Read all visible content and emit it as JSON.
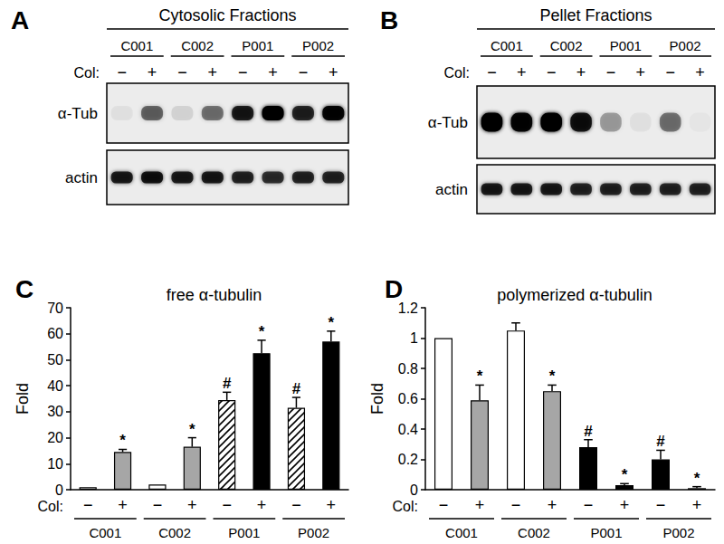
{
  "blots": [
    {
      "panel": "A",
      "title": "Cytosolic Fractions",
      "groups": [
        "C001",
        "C002",
        "P001",
        "P002"
      ],
      "lane_label": "Col:",
      "lanes": [
        "−",
        "+",
        "−",
        "+",
        "−",
        "+",
        "−",
        "+"
      ],
      "rows": [
        {
          "label": "α-Tub",
          "band_intensity": [
            0.05,
            0.5,
            0.1,
            0.45,
            0.8,
            1.0,
            0.75,
            0.95
          ]
        },
        {
          "label": "actin",
          "band_intensity": [
            0.8,
            0.85,
            0.8,
            0.8,
            0.75,
            0.7,
            0.75,
            0.75
          ]
        }
      ]
    },
    {
      "panel": "B",
      "title": "Pellet Fractions",
      "groups": [
        "C001",
        "C002",
        "P001",
        "P002"
      ],
      "lane_label": "Col:",
      "lanes": [
        "−",
        "+",
        "−",
        "+",
        "−",
        "+",
        "−",
        "+"
      ],
      "rows": [
        {
          "label": "α-Tub",
          "band_intensity": [
            1.0,
            0.95,
            1.0,
            0.85,
            0.3,
            0.05,
            0.45,
            0.03
          ]
        },
        {
          "label": "actin",
          "band_intensity": [
            0.8,
            0.8,
            0.8,
            0.75,
            0.75,
            0.75,
            0.75,
            0.75
          ]
        }
      ]
    }
  ],
  "chart_data": [
    {
      "type": "bar",
      "panel": "C",
      "title": "free α-tubulin",
      "ylabel": "Fold",
      "x_label": "Col:",
      "categories": [
        "−",
        "+",
        "−",
        "+",
        "−",
        "+",
        "−",
        "+"
      ],
      "groups": [
        "C001",
        "C002",
        "P001",
        "P002"
      ],
      "values": [
        1,
        14.5,
        2,
        16.5,
        34.5,
        52.5,
        31.5,
        57
      ],
      "errors": [
        0,
        1,
        0,
        3.5,
        3,
        5,
        4,
        4
      ],
      "annotations": [
        null,
        "*",
        null,
        "*",
        "#",
        "*",
        "#",
        "*"
      ],
      "colors": [
        "#ffffff",
        "#a6a6a6",
        "#ffffff",
        "#a6a6a6",
        "hatched",
        "#000000",
        "hatched",
        "#000000"
      ],
      "ylim": [
        0,
        70
      ],
      "yticks": [
        0,
        10,
        20,
        30,
        40,
        50,
        60,
        70
      ],
      "grid": false
    },
    {
      "type": "bar",
      "panel": "D",
      "title": "polymerized α-tubulin",
      "ylabel": "Fold",
      "x_label": "Col:",
      "categories": [
        "−",
        "+",
        "−",
        "+",
        "−",
        "+",
        "−",
        "+"
      ],
      "groups": [
        "C001",
        "C002",
        "P001",
        "P002"
      ],
      "values": [
        1,
        0.59,
        1.05,
        0.65,
        0.28,
        0.03,
        0.2,
        0.01
      ],
      "errors": [
        0,
        0.1,
        0.05,
        0.04,
        0.05,
        0.01,
        0.06,
        0.01
      ],
      "annotations": [
        null,
        "*",
        null,
        "*",
        "#",
        "*",
        "#",
        "*"
      ],
      "colors": [
        "#ffffff",
        "#a6a6a6",
        "#ffffff",
        "#a6a6a6",
        "#000000",
        "#000000",
        "#000000",
        "#000000"
      ],
      "ylim": [
        0,
        1.2
      ],
      "yticks": [
        0,
        0.2,
        0.4,
        0.6,
        0.8,
        1,
        1.2
      ],
      "grid": false
    }
  ]
}
